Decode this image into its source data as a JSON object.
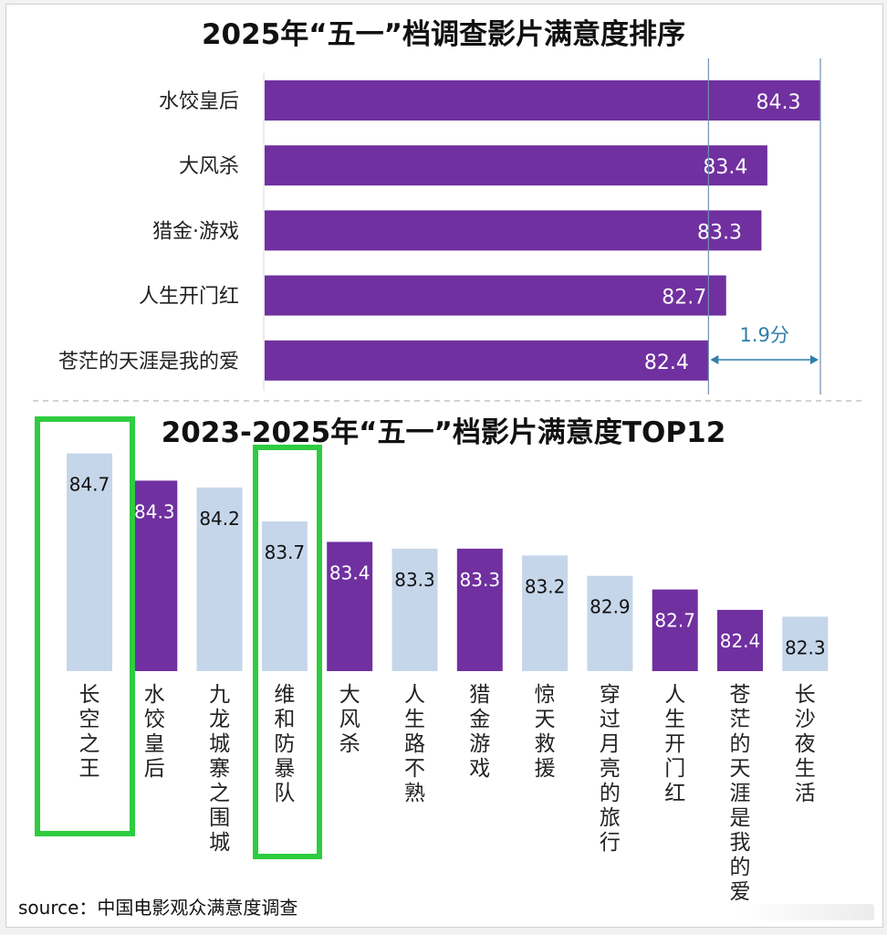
{
  "chart_data": [
    {
      "type": "bar",
      "orientation": "horizontal",
      "title": "2025年“五一”档调查影片满意度排序",
      "categories": [
        "水饺皇后",
        "大风杀",
        "猎金·游戏",
        "人生开门红",
        "苍茫的天涯是我的爱"
      ],
      "values": [
        84.3,
        83.4,
        83.3,
        82.7,
        82.4
      ],
      "bar_color": "#7030a0",
      "annotation": {
        "text": "1.9分",
        "from": 82.4,
        "to": 84.3,
        "color": "#2f7fa8"
      },
      "grid": false
    },
    {
      "type": "bar",
      "orientation": "vertical",
      "title": "2023-2025年“五一”档影片满意度TOP12",
      "categories": [
        "长空之王",
        "水饺皇后",
        "九龙城寨之围城",
        "维和防暴队",
        "大风杀",
        "人生路不熟",
        "猎金游戏",
        "惊天救援",
        "穿过月亮的旅行",
        "人生开门红",
        "苍茫的天涯是我的爱",
        "长沙夜生活"
      ],
      "values": [
        84.7,
        84.3,
        84.2,
        83.7,
        83.4,
        83.3,
        83.3,
        83.2,
        82.9,
        82.7,
        82.4,
        82.3
      ],
      "is_2025": [
        false,
        true,
        false,
        false,
        true,
        false,
        true,
        false,
        false,
        true,
        true,
        false
      ],
      "colors": {
        "year_2025": "#7030a0",
        "other_years": "#c5d6ea"
      },
      "highlighted": [
        "长空之王",
        "维和防暴队"
      ],
      "highlight_color": "#2ecc40",
      "grid": false
    }
  ],
  "source": "source：中国电影观众满意度调查"
}
